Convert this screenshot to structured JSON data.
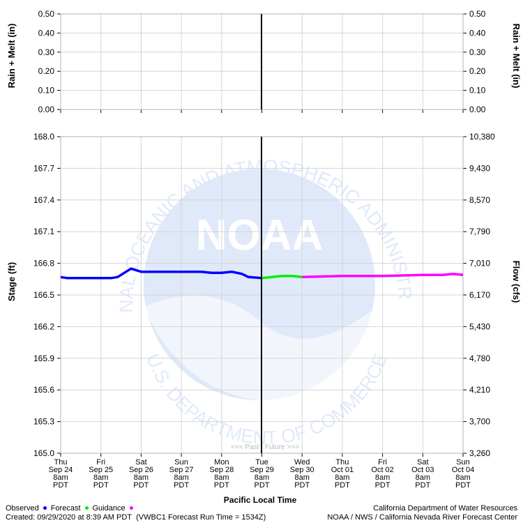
{
  "chart_data": {
    "type": "line",
    "x_unit": "Pacific Local Time",
    "xlabel": "Pacific Local Time",
    "x_ticks": [
      {
        "day": "Thu",
        "date": "Sep 24",
        "time": "8am",
        "tz": "PDT"
      },
      {
        "day": "Fri",
        "date": "Sep 25",
        "time": "8am",
        "tz": "PDT"
      },
      {
        "day": "Sat",
        "date": "Sep 26",
        "time": "8am",
        "tz": "PDT"
      },
      {
        "day": "Sun",
        "date": "Sep 27",
        "time": "8am",
        "tz": "PDT"
      },
      {
        "day": "Mon",
        "date": "Sep 28",
        "time": "8am",
        "tz": "PDT"
      },
      {
        "day": "Tue",
        "date": "Sep 29",
        "time": "8am",
        "tz": "PDT"
      },
      {
        "day": "Wed",
        "date": "Sep 30",
        "time": "8am",
        "tz": "PDT"
      },
      {
        "day": "Thu",
        "date": "Oct 01",
        "time": "8am",
        "tz": "PDT"
      },
      {
        "day": "Fri",
        "date": "Oct 02",
        "time": "8am",
        "tz": "PDT"
      },
      {
        "day": "Sat",
        "date": "Oct 03",
        "time": "8am",
        "tz": "PDT"
      },
      {
        "day": "Sun",
        "date": "Oct 04",
        "time": "8am",
        "tz": "PDT"
      }
    ],
    "x_range": [
      "2020-09-24 08:00",
      "2020-10-04 08:00"
    ],
    "now": "2020-09-29 08:00",
    "past_future_label": "<<< Past   Future >>>",
    "top_panel": {
      "ylabel_left": "Rain + Melt (in)",
      "ylabel_right": "Rain + Melt (in)",
      "ylim": [
        0,
        0.5
      ],
      "y_ticks": [
        "0.00",
        "0.10",
        "0.20",
        "0.30",
        "0.40",
        "0.50"
      ],
      "series": []
    },
    "bottom_panel": {
      "ylabel_left": "Stage (ft)",
      "ylabel_right": "Flow (cfs)",
      "ylim": [
        165.0,
        168.0
      ],
      "y_ticks": [
        "165.0",
        "165.3",
        "165.6",
        "165.9",
        "166.2",
        "166.5",
        "166.8",
        "167.1",
        "167.4",
        "167.7",
        "168.0"
      ],
      "y_ticks_right": [
        "3,260",
        "3,700",
        "4,210",
        "4,780",
        "5,430",
        "6,170",
        "7,010",
        "7,790",
        "8,570",
        "9,430",
        "10,380"
      ],
      "grid": true,
      "series": [
        {
          "name": "Observed",
          "color": "#0000ff",
          "points": [
            [
              "2020-09-24 08:00",
              166.67
            ],
            [
              "2020-09-24 12:00",
              166.66
            ],
            [
              "2020-09-24 20:00",
              166.66
            ],
            [
              "2020-09-25 08:00",
              166.66
            ],
            [
              "2020-09-25 14:00",
              166.66
            ],
            [
              "2020-09-25 18:00",
              166.67
            ],
            [
              "2020-09-25 22:00",
              166.71
            ],
            [
              "2020-09-26 02:00",
              166.75
            ],
            [
              "2020-09-26 06:00",
              166.73
            ],
            [
              "2020-09-26 08:00",
              166.72
            ],
            [
              "2020-09-26 20:00",
              166.72
            ],
            [
              "2020-09-27 08:00",
              166.72
            ],
            [
              "2020-09-27 20:00",
              166.72
            ],
            [
              "2020-09-28 02:00",
              166.71
            ],
            [
              "2020-09-28 08:00",
              166.71
            ],
            [
              "2020-09-28 14:00",
              166.72
            ],
            [
              "2020-09-28 20:00",
              166.7
            ],
            [
              "2020-09-29 00:00",
              166.67
            ],
            [
              "2020-09-29 08:00",
              166.66
            ]
          ]
        },
        {
          "name": "Forecast",
          "color": "#00ee00",
          "points": [
            [
              "2020-09-29 08:00",
              166.66
            ],
            [
              "2020-09-29 14:00",
              166.67
            ],
            [
              "2020-09-29 20:00",
              166.68
            ],
            [
              "2020-09-30 02:00",
              166.68
            ],
            [
              "2020-09-30 08:00",
              166.67
            ]
          ]
        },
        {
          "name": "Guidance",
          "color": "#ff00ff",
          "points": [
            [
              "2020-09-30 08:00",
              166.67
            ],
            [
              "2020-10-01 08:00",
              166.68
            ],
            [
              "2020-10-02 08:00",
              166.68
            ],
            [
              "2020-10-03 08:00",
              166.69
            ],
            [
              "2020-10-03 20:00",
              166.69
            ],
            [
              "2020-10-04 02:00",
              166.7
            ],
            [
              "2020-10-04 08:00",
              166.69
            ]
          ]
        }
      ]
    }
  },
  "legend": {
    "observed": "Observed",
    "forecast": "Forecast",
    "guidance": "Guidance",
    "colors": {
      "observed": "#0000ff",
      "forecast": "#00ee00",
      "guidance": "#ff00ff"
    }
  },
  "footer": {
    "created": "Created: 09/29/2020 at 8:39 AM PDT",
    "run_info": "(VWBC1 Forecast Run Time = 1534Z)",
    "agency_1": "California Department of Water Resources",
    "agency_2": "NOAA / NWS / California Nevada River Forecast Center"
  },
  "watermark": {
    "logo_text": "NOAA",
    "ring_top": "NATIONAL OCEANIC AND ATMOSPHERIC ADMINISTRATION",
    "ring_bottom": "U.S. DEPARTMENT OF COMMERCE"
  }
}
